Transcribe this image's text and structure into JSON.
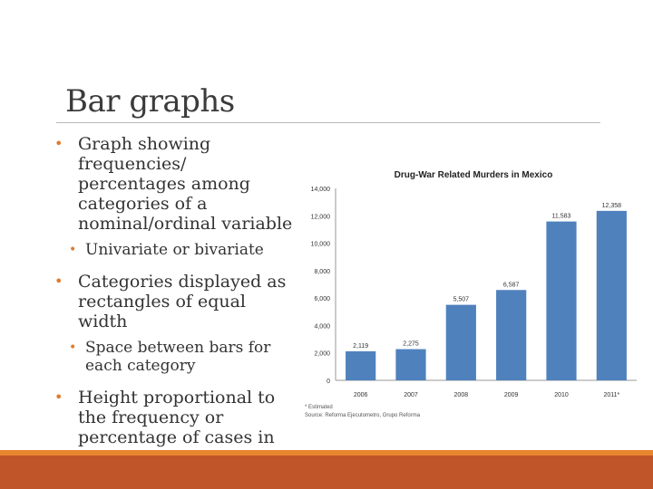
{
  "slide": {
    "title": "Bar graphs",
    "bullets": [
      {
        "text": "Graph showing frequencies/ percentages among categories of a nominal/ordinal variable",
        "sub": [
          "Univariate or bivariate"
        ]
      },
      {
        "text": "Categories displayed as rectangles of equal width",
        "sub": [
          "Space between bars for each category"
        ]
      },
      {
        "text": "Height proportional to the frequency or percentage of cases in the category",
        "sub": []
      }
    ]
  },
  "chart_data": {
    "type": "bar",
    "title": "Drug-War Related Murders in Mexico",
    "categories": [
      "2006",
      "2007",
      "2008",
      "2009",
      "2010",
      "2011*"
    ],
    "values": [
      2119,
      2275,
      5507,
      6587,
      11583,
      12358
    ],
    "value_labels": [
      "2,119",
      "2,275",
      "5,507",
      "6,587",
      "11,583",
      "12,358"
    ],
    "ylim": [
      0,
      14000
    ],
    "yticks": [
      "0",
      "2,000",
      "4,000",
      "6,000",
      "8,000",
      "10,000",
      "12,000",
      "14,000"
    ],
    "grid": false,
    "bar_color": "#4f81bd",
    "footnote": "* Estimated",
    "source": "Source: Reforma Ejecutometro, Grupo Reforma"
  },
  "colors": {
    "accent": "#e07a2e",
    "footer": "#c0552a"
  }
}
